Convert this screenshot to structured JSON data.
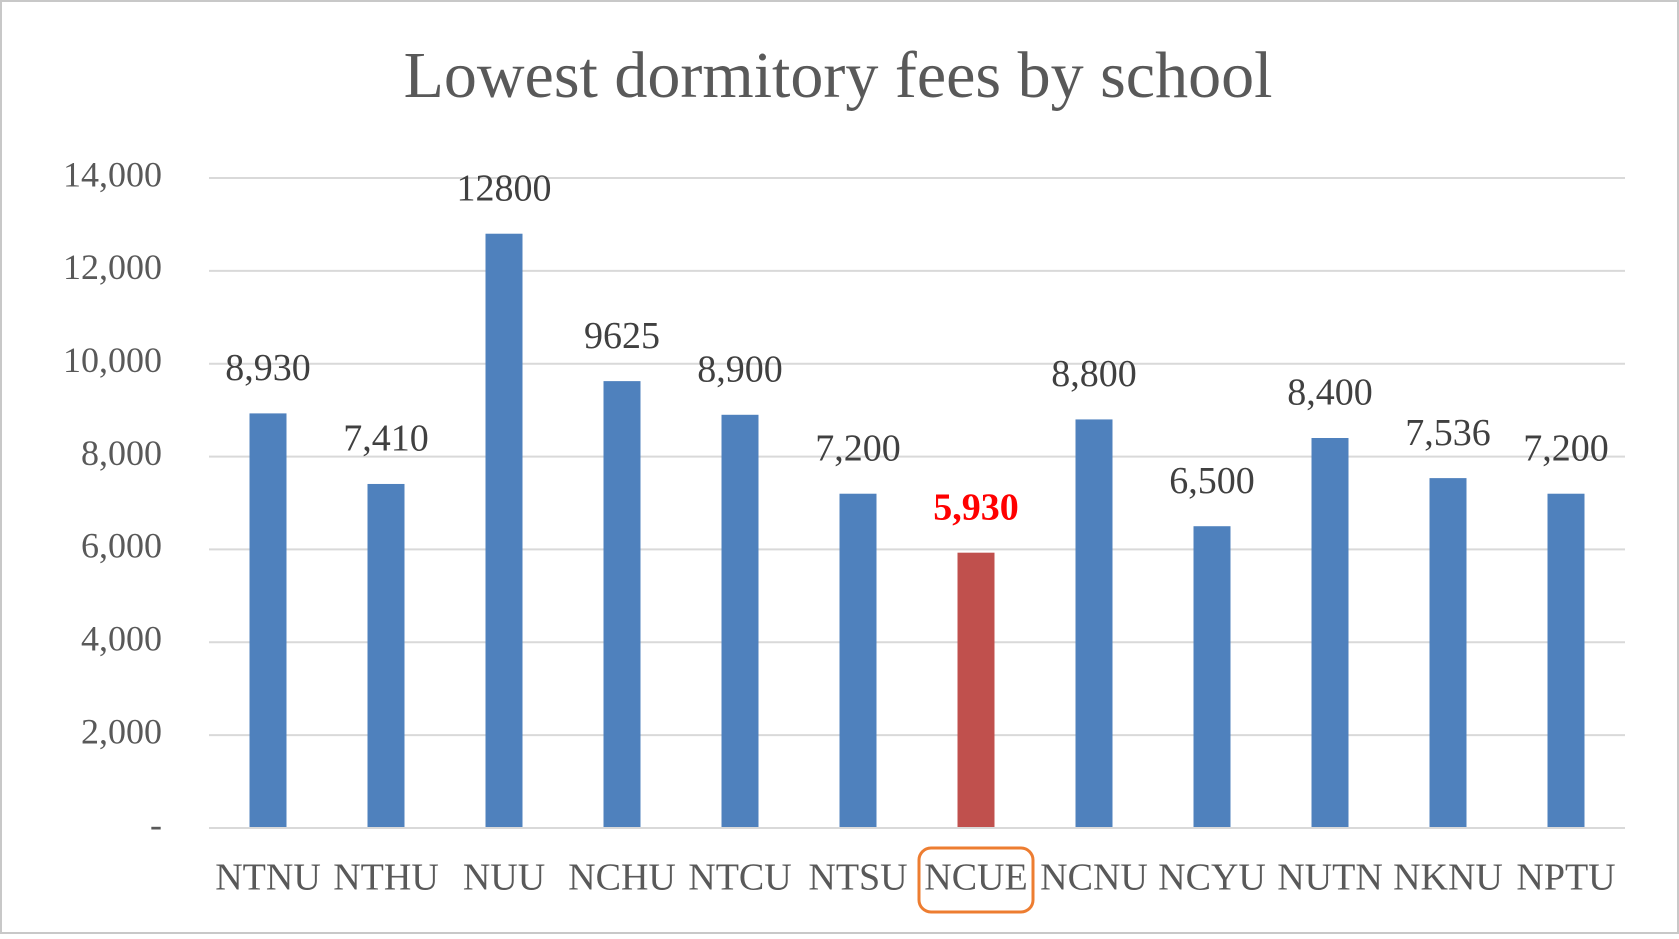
{
  "chart_data": {
    "type": "bar",
    "title": "Lowest dormitory fees by school",
    "categories": [
      "NTNU",
      "NTHU",
      "NUU",
      "NCHU",
      "NTCU",
      "NTSU",
      "NCUE",
      "NCNU",
      "NCYU",
      "NUTN",
      "NKNU",
      "NPTU"
    ],
    "values": [
      8930,
      7410,
      12800,
      9625,
      8900,
      7200,
      5930,
      8800,
      6500,
      8400,
      7536,
      7200
    ],
    "value_labels": [
      "8,930",
      "7,410",
      "12800",
      "9625",
      "8,900",
      "7,200",
      "5,930",
      "8,800",
      "6,500",
      "8,400",
      "7,536",
      "7,200"
    ],
    "color": "#4f81bd",
    "highlighted": [
      false,
      false,
      false,
      false,
      false,
      false,
      true,
      false,
      false,
      false,
      false,
      false
    ],
    "highlight_color": "#c0504d",
    "highlight_label_color": "#ff0000",
    "highlight_box_color": "#ed7d31",
    "ylim": [
      0,
      14000
    ],
    "yticks": [
      {
        "value": 0,
        "label": "-"
      },
      {
        "value": 2000,
        "label": "2,000"
      },
      {
        "value": 4000,
        "label": "4,000"
      },
      {
        "value": 6000,
        "label": "6,000"
      },
      {
        "value": 8000,
        "label": "8,000"
      },
      {
        "value": 10000,
        "label": "10,000"
      },
      {
        "value": 12000,
        "label": "12,000"
      },
      {
        "value": 14000,
        "label": "14,000"
      }
    ],
    "grid": true
  }
}
